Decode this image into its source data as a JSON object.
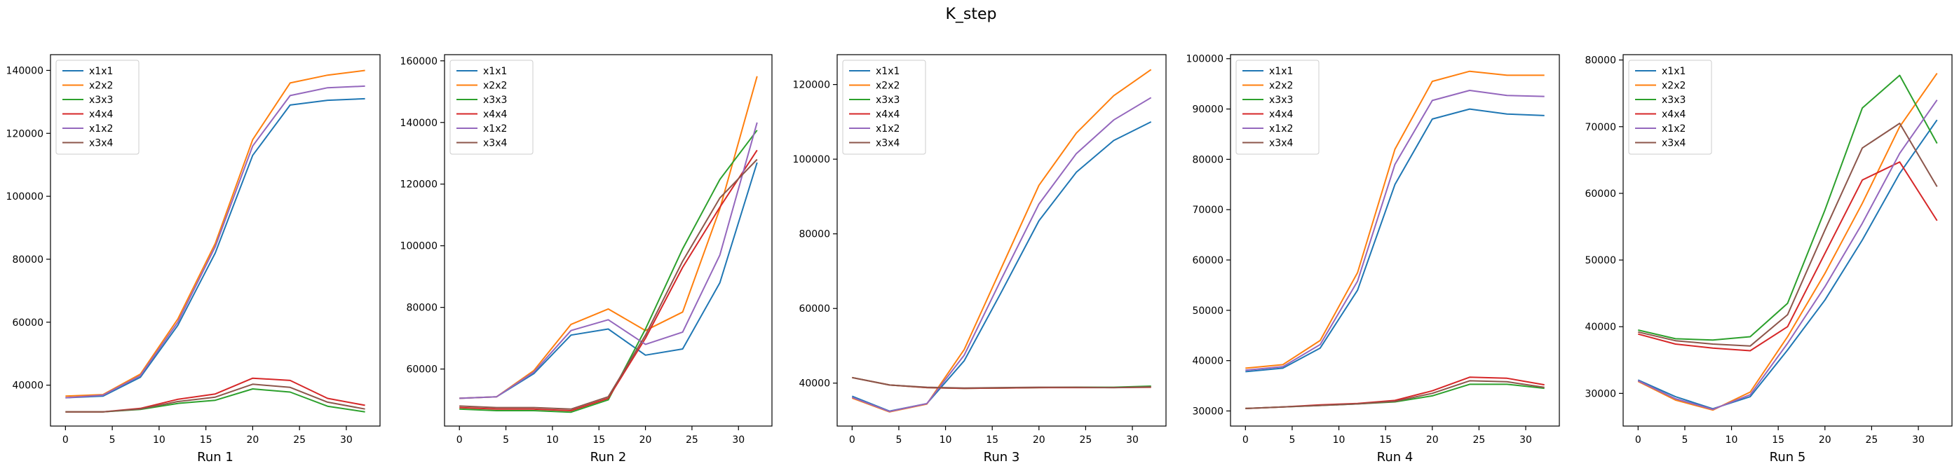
{
  "figure": {
    "title": "K_step"
  },
  "colors": {
    "x1x1": "#1f77b4",
    "x2x2": "#ff7f0e",
    "x3x3": "#2ca02c",
    "x4x4": "#d62728",
    "x1x2": "#9467bd",
    "x3x4": "#8c564b"
  },
  "chart_data": [
    {
      "type": "line",
      "xlabel": "Run 1",
      "x": [
        0,
        4,
        8,
        12,
        16,
        20,
        24,
        28,
        32
      ],
      "xticks": [
        0,
        5,
        10,
        15,
        20,
        25,
        30
      ],
      "yticks": [
        40000,
        60000,
        80000,
        100000,
        120000,
        140000
      ],
      "ylim": [
        27000,
        145000
      ],
      "legend": "top-left",
      "series": [
        {
          "name": "x1x1",
          "values": [
            36000,
            36500,
            42500,
            59000,
            82000,
            113000,
            129000,
            130500,
            131000
          ]
        },
        {
          "name": "x2x2",
          "values": [
            36500,
            37000,
            43500,
            61000,
            85000,
            118000,
            136000,
            138500,
            140000
          ]
        },
        {
          "name": "x3x3",
          "values": [
            31500,
            31500,
            32300,
            34200,
            35200,
            38800,
            37800,
            33300,
            31500
          ]
        },
        {
          "name": "x4x4",
          "values": [
            31500,
            31500,
            32600,
            35500,
            37200,
            42200,
            41500,
            35800,
            33600
          ]
        },
        {
          "name": "x1x2",
          "values": [
            36000,
            36800,
            43000,
            60000,
            84000,
            116000,
            132000,
            134500,
            135000
          ]
        },
        {
          "name": "x3x4",
          "values": [
            31500,
            31500,
            32400,
            34800,
            36200,
            40300,
            39300,
            34600,
            32400
          ]
        }
      ]
    },
    {
      "type": "line",
      "xlabel": "Run 2",
      "x": [
        0,
        4,
        8,
        12,
        16,
        20,
        24,
        28,
        32
      ],
      "xticks": [
        0,
        5,
        10,
        15,
        20,
        25,
        30
      ],
      "yticks": [
        60000,
        80000,
        100000,
        120000,
        140000,
        160000
      ],
      "ylim": [
        41500,
        162000
      ],
      "legend": "top-left",
      "series": [
        {
          "name": "x1x1",
          "values": [
            50500,
            51000,
            58500,
            71000,
            73000,
            64500,
            66500,
            88000,
            127000
          ]
        },
        {
          "name": "x2x2",
          "values": [
            50500,
            51000,
            59500,
            74500,
            79500,
            72500,
            78500,
            112000,
            155000
          ]
        },
        {
          "name": "x3x3",
          "values": [
            47000,
            46500,
            46500,
            46000,
            50000,
            73000,
            99000,
            121500,
            137500
          ]
        },
        {
          "name": "x4x4",
          "values": [
            47500,
            47000,
            47000,
            46500,
            50500,
            70000,
            93000,
            112500,
            131000
          ]
        },
        {
          "name": "x1x2",
          "values": [
            50500,
            51000,
            59000,
            72500,
            76000,
            68000,
            72000,
            97000,
            140000
          ]
        },
        {
          "name": "x3x4",
          "values": [
            48000,
            47500,
            47500,
            47000,
            51000,
            71000,
            95000,
            115500,
            128000
          ]
        }
      ]
    },
    {
      "type": "line",
      "xlabel": "Run 3",
      "x": [
        0,
        4,
        8,
        12,
        16,
        20,
        24,
        28,
        32
      ],
      "xticks": [
        0,
        5,
        10,
        15,
        20,
        25,
        30
      ],
      "yticks": [
        40000,
        60000,
        80000,
        100000,
        120000
      ],
      "ylim": [
        28500,
        128000
      ],
      "legend": "top-left",
      "series": [
        {
          "name": "x1x1",
          "values": [
            36500,
            32500,
            34500,
            46000,
            64500,
            83500,
            96500,
            105000,
            110000
          ]
        },
        {
          "name": "x2x2",
          "values": [
            36000,
            32300,
            34400,
            49000,
            71000,
            93000,
            107000,
            117000,
            124000
          ]
        },
        {
          "name": "x3x3",
          "values": [
            41500,
            39500,
            38800,
            38600,
            38700,
            38800,
            38900,
            38900,
            39200
          ]
        },
        {
          "name": "x4x4",
          "values": [
            41500,
            39500,
            38800,
            38600,
            38700,
            38800,
            38800,
            38800,
            38900
          ]
        },
        {
          "name": "x1x2",
          "values": [
            36200,
            32400,
            34500,
            47500,
            68000,
            88000,
            101500,
            110500,
            116500
          ]
        },
        {
          "name": "x3x4",
          "values": [
            41500,
            39500,
            38900,
            38700,
            38800,
            38900,
            38900,
            38800,
            39000
          ]
        }
      ]
    },
    {
      "type": "line",
      "xlabel": "Run 4",
      "x": [
        0,
        4,
        8,
        12,
        16,
        20,
        24,
        28,
        32
      ],
      "xticks": [
        0,
        5,
        10,
        15,
        20,
        25,
        30
      ],
      "yticks": [
        30000,
        40000,
        50000,
        60000,
        70000,
        80000,
        90000,
        100000
      ],
      "ylim": [
        27000,
        100800
      ],
      "legend": "top-left",
      "series": [
        {
          "name": "x1x1",
          "values": [
            37800,
            38500,
            42500,
            54000,
            75000,
            88000,
            90000,
            89000,
            88700
          ]
        },
        {
          "name": "x2x2",
          "values": [
            38500,
            39200,
            44000,
            57500,
            82000,
            95500,
            97500,
            96700,
            96700
          ]
        },
        {
          "name": "x3x3",
          "values": [
            30500,
            30800,
            31100,
            31400,
            31800,
            33000,
            35300,
            35300,
            34500
          ]
        },
        {
          "name": "x4x4",
          "values": [
            30500,
            30800,
            31200,
            31500,
            32100,
            34000,
            36700,
            36500,
            35200
          ]
        },
        {
          "name": "x1x2",
          "values": [
            38100,
            38800,
            43200,
            55800,
            79000,
            91700,
            93700,
            92700,
            92500
          ]
        },
        {
          "name": "x3x4",
          "values": [
            30500,
            30800,
            31100,
            31400,
            31900,
            33500,
            36000,
            35800,
            34700
          ]
        }
      ]
    },
    {
      "type": "line",
      "xlabel": "Run 5",
      "x": [
        0,
        4,
        8,
        12,
        16,
        20,
        24,
        28,
        32
      ],
      "xticks": [
        0,
        5,
        10,
        15,
        20,
        25,
        30
      ],
      "yticks": [
        30000,
        40000,
        50000,
        60000,
        70000,
        80000
      ],
      "ylim": [
        25100,
        80800
      ],
      "legend": "top-left",
      "series": [
        {
          "name": "x1x1",
          "values": [
            32000,
            29500,
            27700,
            29500,
            36500,
            44000,
            53000,
            63000,
            71000
          ]
        },
        {
          "name": "x2x2",
          "values": [
            31800,
            29000,
            27500,
            30200,
            38500,
            48000,
            58500,
            70000,
            78000
          ]
        },
        {
          "name": "x3x3",
          "values": [
            39500,
            38200,
            38000,
            38500,
            43500,
            57500,
            72800,
            77700,
            67500
          ]
        },
        {
          "name": "x4x4",
          "values": [
            38900,
            37400,
            36800,
            36400,
            40000,
            51000,
            62000,
            64700,
            55900
          ]
        },
        {
          "name": "x1x2",
          "values": [
            31900,
            29200,
            27600,
            29800,
            37500,
            46000,
            55500,
            66000,
            74000
          ]
        },
        {
          "name": "x3x4",
          "values": [
            39200,
            37900,
            37400,
            37100,
            41800,
            54500,
            66800,
            70500,
            61000
          ]
        }
      ]
    }
  ]
}
